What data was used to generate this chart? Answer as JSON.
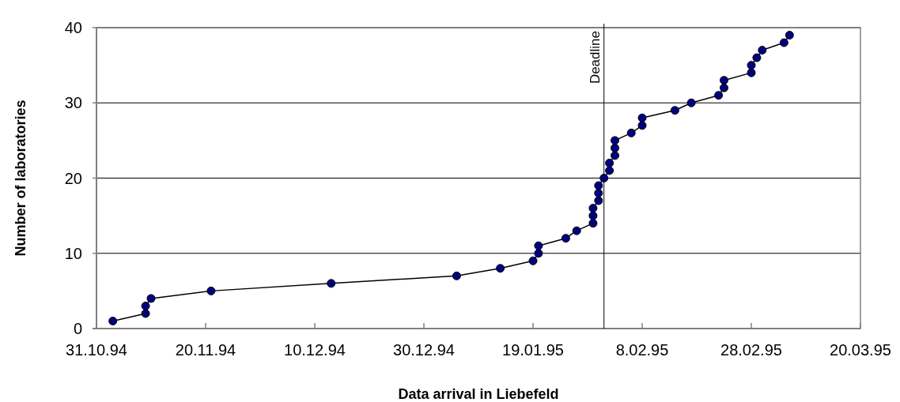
{
  "chart_data": {
    "type": "line",
    "xlabel": "Data arrival in Liebefeld",
    "ylabel": "Number of laboratories",
    "x": [
      "1994-11-03",
      "1994-11-09",
      "1994-11-09",
      "1994-11-10",
      "1994-11-21",
      "1994-12-13",
      "1995-01-05",
      "1995-01-13",
      "1995-01-19",
      "1995-01-20",
      "1995-01-20",
      "1995-01-25",
      "1995-01-27",
      "1995-01-30",
      "1995-01-30",
      "1995-01-30",
      "1995-01-31",
      "1995-01-31",
      "1995-01-31",
      "1995-02-01",
      "1995-02-02",
      "1995-02-02",
      "1995-02-03",
      "1995-02-03",
      "1995-02-03",
      "1995-02-06",
      "1995-02-08",
      "1995-02-08",
      "1995-02-14",
      "1995-02-17",
      "1995-02-22",
      "1995-02-23",
      "1995-02-23",
      "1995-02-28",
      "1995-02-28",
      "1995-03-01",
      "1995-03-02",
      "1995-03-06",
      "1995-03-07"
    ],
    "series": [
      {
        "color": "#000080",
        "values": [
          1,
          2,
          3,
          4,
          5,
          6,
          7,
          8,
          9,
          10,
          11,
          12,
          13,
          14,
          15,
          16,
          17,
          18,
          19,
          20,
          21,
          22,
          23,
          24,
          25,
          26,
          27,
          28,
          29,
          30,
          31,
          32,
          33,
          34,
          35,
          36,
          37,
          38,
          39
        ]
      }
    ],
    "xlim": [
      "1994-10-31",
      "1995-03-20"
    ],
    "xticks": [
      {
        "value": "1994-10-31",
        "label": "31.10.94"
      },
      {
        "value": "1994-11-20",
        "label": "20.11.94"
      },
      {
        "value": "1994-12-10",
        "label": "10.12.94"
      },
      {
        "value": "1994-12-30",
        "label": "30.12.94"
      },
      {
        "value": "1995-01-19",
        "label": "19.01.95"
      },
      {
        "value": "1995-02-08",
        "label": "8.02.95"
      },
      {
        "value": "1995-02-28",
        "label": "28.02.95"
      },
      {
        "value": "1995-03-20",
        "label": "20.03.95"
      }
    ],
    "ylim": [
      0,
      40
    ],
    "yticks": [
      0,
      10,
      20,
      30,
      40
    ],
    "grid": "y",
    "marker": "circle",
    "line_style": "solid",
    "ref_lines": [
      {
        "axis": "x",
        "value": "1995-02-01",
        "label": "Deadline",
        "color": "#000000"
      }
    ]
  }
}
